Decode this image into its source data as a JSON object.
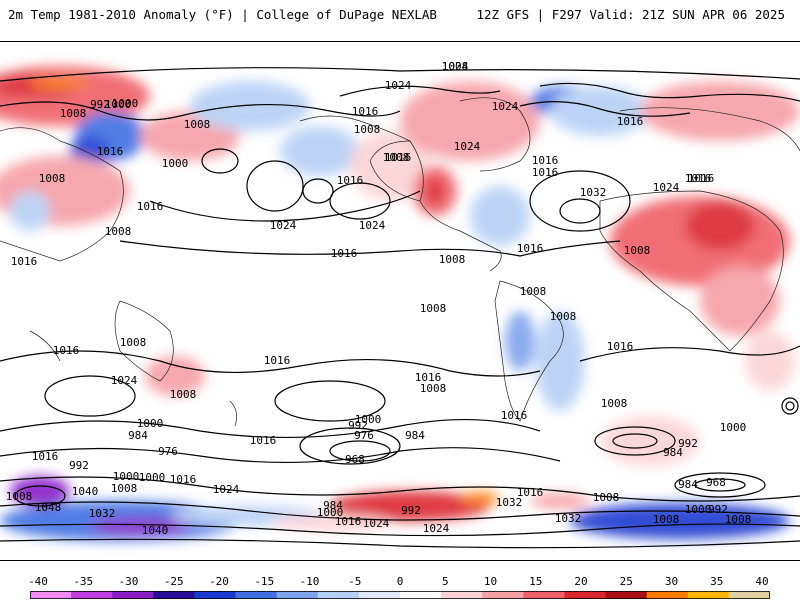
{
  "header": {
    "left_title": "2m Temp 1981-2010 Anomaly (°F) | College of DuPage NEXLAB",
    "right_title": "12Z GFS | F297 Valid: 21Z SUN APR 06 2025"
  },
  "colorbar": {
    "ticks": [
      "-40",
      "-35",
      "-30",
      "-25",
      "-20",
      "-15",
      "-10",
      "-5",
      "0",
      "5",
      "10",
      "15",
      "20",
      "25",
      "30",
      "35",
      "40"
    ],
    "colors": [
      "#f28cf2",
      "#c040e0",
      "#8a1fc8",
      "#2a0f9a",
      "#1a3bd1",
      "#3f6fe3",
      "#7ea3ec",
      "#b6cff5",
      "#dfe9fb",
      "#ffffff",
      "#fbd3d6",
      "#f59fa6",
      "#ef6068",
      "#dc262d",
      "#a80e14",
      "#ff7a00",
      "#ffb400",
      "#e0d0a0"
    ]
  },
  "map": {
    "contour_labels": [
      "1008",
      "1024",
      "1016",
      "1008",
      "1016",
      "1000",
      "1024",
      "1016",
      "992",
      "1000",
      "1008",
      "1008",
      "1016",
      "1000",
      "1016",
      "1008",
      "1016",
      "1008",
      "1024",
      "1008",
      "1016",
      "1032",
      "1024",
      "1016",
      "1008",
      "1024",
      "1016",
      "1016",
      "1016",
      "1008",
      "1008",
      "1008",
      "1008",
      "1008",
      "1016",
      "1016",
      "1024",
      "1024",
      "1008",
      "1016",
      "1016",
      "1016",
      "1008",
      "1016",
      "1000",
      "1000",
      "992",
      "984",
      "976",
      "984",
      "968",
      "976",
      "1016",
      "1008",
      "1016",
      "1016",
      "992",
      "984",
      "968",
      "984",
      "992",
      "1000",
      "1000",
      "1016",
      "1024",
      "1008",
      "1048",
      "1032",
      "1040",
      "1040",
      "1024",
      "992",
      "984",
      "1000",
      "1016",
      "1024",
      "1032",
      "1008",
      "1000",
      "992",
      "1000",
      "1008",
      "1008",
      "1032",
      "1016",
      "1008",
      "1024"
    ]
  }
}
